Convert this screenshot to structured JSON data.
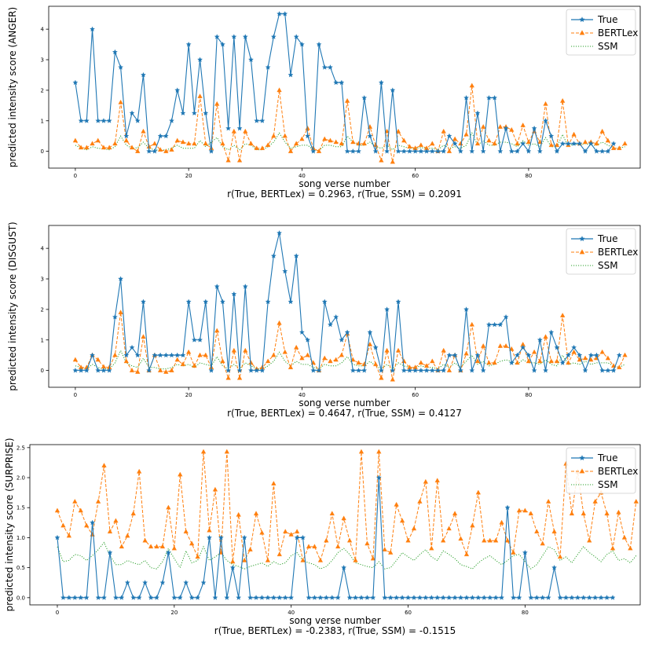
{
  "colors": {
    "True": "#1f77b4",
    "BERTLex": "#ff7f0e",
    "SSM": "#2ca02c"
  },
  "chart_data": [
    {
      "type": "line",
      "ylabel": "predicted intensity score (ANGER)",
      "xlabel": "song verse number",
      "caption": "r(True, BERTLex) = 0.2963, r(True, SSM) = 0.2091",
      "xlim": [
        -4.7,
        99.7
      ],
      "ylim": [
        -0.55,
        4.75
      ],
      "xticks": [
        0,
        20,
        40,
        60,
        80
      ],
      "yticks": [
        0,
        1,
        2,
        3,
        4
      ],
      "legend_position": "top-right",
      "grid": false,
      "series": [
        {
          "name": "True",
          "marker": "star",
          "style": "solid",
          "values": [
            2.25,
            1,
            1,
            4,
            1,
            1,
            1,
            3.25,
            2.75,
            0.5,
            1.25,
            1,
            2.5,
            0,
            0,
            0.5,
            0.5,
            1,
            2,
            1.25,
            3.5,
            1.25,
            3,
            1.25,
            0,
            3.75,
            3.5,
            0.75,
            3.75,
            0.75,
            3.75,
            3,
            1,
            1,
            2.75,
            3.75,
            4.5,
            4.5,
            2.5,
            3.75,
            3.5,
            0.5,
            0,
            3.5,
            2.75,
            2.75,
            2.25,
            2.25,
            0,
            0,
            0,
            1.75,
            0.5,
            0,
            2.25,
            0,
            2,
            0,
            0,
            0,
            0,
            0,
            0,
            0,
            0,
            0,
            0.5,
            0.25,
            0,
            1.75,
            0,
            1.25,
            0,
            1.75,
            1.75,
            0,
            0.75,
            0,
            0,
            0.25,
            0,
            0.75,
            0,
            1,
            0.5,
            0,
            0.25,
            0.25,
            0.25,
            0.25,
            0,
            0.25,
            0,
            0,
            0,
            0.25
          ]
        },
        {
          "name": "BERTLex",
          "marker": "triangle",
          "style": "dashed",
          "values": [
            0.35,
            0.12,
            0.12,
            0.25,
            0.35,
            0.12,
            0.12,
            0.25,
            1.6,
            0.35,
            0.12,
            0,
            0.65,
            0.15,
            0.25,
            0.05,
            0,
            0.05,
            0.35,
            0.3,
            0.25,
            0.25,
            1.8,
            0.25,
            0.1,
            1.55,
            0.25,
            -0.3,
            0.65,
            -0.3,
            0.65,
            0.25,
            0.1,
            0.1,
            0.2,
            0.5,
            2,
            0.5,
            0,
            0.25,
            0.4,
            0.75,
            0.1,
            0,
            0.4,
            0.35,
            0.3,
            0.25,
            1.65,
            0.3,
            0.25,
            0.25,
            0.8,
            0.2,
            -0.3,
            0.65,
            -0.35,
            0.65,
            0.35,
            0.15,
            0.1,
            0.2,
            0.1,
            0.25,
            0,
            0.65,
            0,
            0.4,
            0.25,
            0.55,
            2.15,
            0.25,
            0.8,
            0.35,
            0.25,
            0.8,
            0.8,
            0.7,
            0.25,
            0.85,
            0.3,
            0.65,
            0.3,
            1.55,
            0.2,
            0.2,
            1.65,
            0.2,
            0.55,
            0.25,
            0.3,
            0.3,
            0.25,
            0.65,
            0.35,
            0.1,
            0.1,
            0.25
          ]
        },
        {
          "name": "SSM",
          "marker": "none",
          "style": "dotted",
          "values": [
            0.2,
            0.1,
            0.05,
            0.15,
            0.1,
            0.08,
            0.05,
            0.15,
            0.5,
            0.2,
            0.1,
            0.12,
            0.3,
            0.1,
            0.05,
            0.03,
            0.05,
            0.1,
            0.2,
            0.1,
            0.1,
            0.1,
            0.35,
            0.15,
            0.3,
            0.45,
            0.15,
            0.05,
            0.2,
            0.05,
            0.25,
            0.2,
            0.05,
            0.05,
            0.15,
            0.3,
            0.6,
            0.3,
            0.1,
            0.15,
            0.2,
            0.2,
            0.05,
            0.02,
            0.2,
            0.2,
            0.15,
            0.15,
            0.5,
            0.3,
            0.2,
            0.2,
            0.3,
            0.15,
            0.1,
            0.2,
            0.05,
            0.2,
            0.15,
            0.1,
            0.1,
            0.12,
            0.1,
            0.1,
            0.05,
            0.2,
            0.1,
            0.15,
            0.1,
            0.2,
            0.6,
            0.2,
            0.35,
            0.2,
            0.2,
            0.3,
            0.3,
            0.25,
            0.15,
            0.35,
            0.2,
            0.25,
            0.15,
            0.45,
            0.15,
            0.15,
            0.55,
            0.15,
            0.25,
            0.2,
            0.25,
            0.2,
            0.2,
            0.3,
            0.2,
            0.1,
            0.1,
            0.15
          ]
        }
      ]
    },
    {
      "type": "line",
      "ylabel": "predicted intensity score (DISGUST)",
      "xlabel": "song verse number",
      "caption": "r(True, BERTLex) = 0.4647, r(True, SSM) = 0.4127",
      "xlim": [
        -4.7,
        99.7
      ],
      "ylim": [
        -0.55,
        4.75
      ],
      "xticks": [
        0,
        20,
        40,
        60,
        80
      ],
      "yticks": [
        0,
        1,
        2,
        3,
        4
      ],
      "legend_position": "top-right",
      "grid": false,
      "series": [
        {
          "name": "True",
          "marker": "star",
          "style": "solid",
          "values": [
            0,
            0,
            0,
            0.5,
            0,
            0,
            0,
            1.75,
            3,
            0.5,
            0.75,
            0.5,
            2.25,
            0,
            0.5,
            0.5,
            0.5,
            0.5,
            0.5,
            0.5,
            2.25,
            1,
            1,
            2.25,
            0,
            2.75,
            2.25,
            0,
            2.5,
            0,
            2.75,
            0,
            0,
            0,
            2.25,
            3.75,
            4.5,
            3.25,
            2.25,
            3.75,
            1.25,
            1,
            0,
            0,
            2.25,
            1.5,
            1.75,
            1,
            1.25,
            0,
            0,
            0,
            1.25,
            0.75,
            0,
            2,
            0,
            2.25,
            0,
            0,
            0,
            0,
            0,
            0,
            0,
            0,
            0.5,
            0.5,
            0,
            2,
            0,
            0.5,
            0,
            1.5,
            1.5,
            1.5,
            1.75,
            0.25,
            0.5,
            0.75,
            0.5,
            0,
            1,
            0,
            1.25,
            0.75,
            0.25,
            0.5,
            0.75,
            0.5,
            0,
            0.5,
            0.5,
            0,
            0,
            0,
            0.5
          ]
        },
        {
          "name": "BERTLex",
          "marker": "triangle",
          "style": "dashed",
          "values": [
            0.35,
            0.1,
            0.1,
            0.5,
            0.35,
            0.12,
            0.1,
            0.5,
            1.9,
            0.3,
            0,
            -0.05,
            1.1,
            0,
            0.5,
            0,
            -0.05,
            0,
            0.35,
            0.2,
            0.6,
            0.15,
            0.5,
            0.5,
            0.1,
            1.3,
            0.3,
            -0.25,
            0.65,
            -0.25,
            0.65,
            0.25,
            0.05,
            0.1,
            0.3,
            0.5,
            1.55,
            0.6,
            0.1,
            0.75,
            0.4,
            0.5,
            0.25,
            0,
            0.4,
            0.3,
            0.35,
            0.5,
            1.2,
            0.35,
            0.25,
            0.2,
            0.85,
            0.2,
            -0.25,
            0.65,
            -0.3,
            0.65,
            0.3,
            0.1,
            0.1,
            0.25,
            0.15,
            0.3,
            0,
            0.65,
            0,
            0.5,
            0,
            0.55,
            1.5,
            0.3,
            0.8,
            0.25,
            0.25,
            0.8,
            0.8,
            0.7,
            0.25,
            0.85,
            0.3,
            0.6,
            0.3,
            1.1,
            0.3,
            0.3,
            1.8,
            0.25,
            0.6,
            0.35,
            0.4,
            0.35,
            0.4,
            0.6,
            0.4,
            0.15,
            0.1,
            0.5
          ]
        },
        {
          "name": "SSM",
          "marker": "none",
          "style": "dotted",
          "values": [
            0.15,
            0.1,
            0.05,
            0.2,
            0.1,
            0.05,
            0.05,
            0.25,
            0.65,
            0.25,
            0.15,
            0.1,
            0.4,
            0.1,
            0.1,
            0.05,
            0.05,
            0.1,
            0.2,
            0.15,
            0.2,
            0.1,
            0.25,
            0.2,
            0.15,
            0.45,
            0.15,
            0.05,
            0.2,
            0.05,
            0.25,
            0.15,
            0.05,
            0.05,
            0.15,
            0.3,
            0.6,
            0.3,
            0.15,
            0.3,
            0.2,
            0.2,
            0.1,
            0.05,
            0.2,
            0.15,
            0.15,
            0.25,
            0.45,
            0.2,
            0.15,
            0.15,
            0.3,
            0.15,
            0.05,
            0.2,
            0.05,
            0.25,
            0.15,
            0.1,
            0.1,
            0.15,
            0.1,
            0.1,
            0.05,
            0.2,
            0.1,
            0.25,
            0.1,
            0.3,
            0.5,
            0.2,
            0.3,
            0.15,
            0.2,
            0.3,
            0.35,
            0.3,
            0.2,
            0.35,
            0.25,
            0.25,
            0.2,
            0.35,
            0.2,
            0.15,
            0.5,
            0.2,
            0.25,
            0.2,
            0.3,
            0.2,
            0.25,
            0.25,
            0.25,
            0.15,
            0.1,
            0.2
          ]
        }
      ]
    },
    {
      "type": "line",
      "ylabel": "predicted intensity score (SURPRISE)",
      "xlabel": "song verse number",
      "caption": "r(True, BERTLex) = -0.2383, r(True, SSM) = -0.1515",
      "xlim": [
        -4.7,
        99.7
      ],
      "ylim": [
        -0.12,
        2.55
      ],
      "xticks": [
        0,
        20,
        40,
        60,
        80
      ],
      "yticks": [
        0.0,
        0.5,
        1.0,
        1.5,
        2.0,
        2.5
      ],
      "legend_position": "top-right",
      "grid": false,
      "series": [
        {
          "name": "True",
          "marker": "star",
          "style": "solid",
          "values": [
            1,
            0,
            0,
            0,
            0,
            0,
            1.25,
            0,
            0,
            0.75,
            0,
            0,
            0.25,
            0,
            0,
            0.25,
            0,
            0,
            0.25,
            0.75,
            0,
            0,
            0.25,
            0,
            0,
            0.25,
            1,
            0,
            1,
            0,
            0.5,
            0,
            1,
            0,
            0,
            0,
            0,
            0,
            0,
            0,
            0,
            1,
            1,
            0,
            0,
            0,
            0,
            0,
            0,
            0.5,
            0,
            0,
            0,
            0,
            0,
            2,
            0,
            0,
            0,
            0,
            0,
            0,
            0,
            0,
            0,
            0,
            0,
            0,
            0,
            0,
            0,
            0,
            0,
            0,
            0,
            0,
            0,
            1.5,
            0,
            0,
            0.75,
            0,
            0,
            0,
            0,
            0.5,
            0,
            0,
            0,
            0,
            0,
            0,
            0,
            0,
            0,
            0
          ]
        },
        {
          "name": "BERTLex",
          "marker": "triangle",
          "style": "dashed",
          "values": [
            1.45,
            1.2,
            1.03,
            1.6,
            1.45,
            1.2,
            1.05,
            1.6,
            2.2,
            1.1,
            1.28,
            0.85,
            1.03,
            1.4,
            2.1,
            0.95,
            0.85,
            0.85,
            0.85,
            1.5,
            0.82,
            2.05,
            1.1,
            0.9,
            0.68,
            2.43,
            1.12,
            1.8,
            0.75,
            2.43,
            0.6,
            1.38,
            0.62,
            0.8,
            1.4,
            1.08,
            0.62,
            1.9,
            0.72,
            1.1,
            1.05,
            1.1,
            0.62,
            0.85,
            0.85,
            0.62,
            0.95,
            1.4,
            0.85,
            1.32,
            0.95,
            0.62,
            2.43,
            0.9,
            0.65,
            2.43,
            0.8,
            0.75,
            1.55,
            1.28,
            0.95,
            1.15,
            1.6,
            1.93,
            0.82,
            1.95,
            0.95,
            1.15,
            1.4,
            0.98,
            0.72,
            1.2,
            1.75,
            0.95,
            0.95,
            0.95,
            1.25,
            0.95,
            0.75,
            1.45,
            1.45,
            1.4,
            1.1,
            0.9,
            1.6,
            1.1,
            0.68,
            2.23,
            1.4,
            2.1,
            1.4,
            0.95,
            1.6,
            1.75,
            1.4,
            0.82,
            1.42,
            1.0,
            0.82,
            1.6
          ]
        },
        {
          "name": "SSM",
          "marker": "none",
          "style": "dotted",
          "values": [
            0.85,
            0.6,
            0.62,
            0.72,
            0.7,
            0.62,
            0.7,
            0.8,
            0.92,
            0.7,
            0.55,
            0.55,
            0.62,
            0.58,
            0.55,
            0.62,
            0.5,
            0.48,
            0.6,
            0.82,
            0.65,
            0.5,
            0.78,
            0.58,
            0.62,
            0.85,
            0.62,
            0.68,
            0.75,
            0.62,
            0.55,
            0.52,
            0.48,
            0.52,
            0.55,
            0.58,
            0.52,
            0.6,
            0.55,
            0.58,
            0.7,
            0.75,
            0.62,
            0.58,
            0.55,
            0.48,
            0.52,
            0.62,
            0.75,
            0.82,
            0.72,
            0.58,
            0.55,
            0.52,
            0.5,
            0.6,
            0.48,
            0.5,
            0.62,
            0.75,
            0.68,
            0.62,
            0.72,
            0.8,
            0.68,
            0.62,
            0.78,
            0.72,
            0.65,
            0.55,
            0.52,
            0.48,
            0.58,
            0.65,
            0.7,
            0.62,
            0.55,
            0.62,
            0.7,
            0.72,
            0.6,
            0.48,
            0.55,
            0.7,
            0.85,
            0.8,
            0.62,
            0.68,
            0.58,
            0.72,
            0.85,
            0.75,
            0.68,
            0.6,
            0.72,
            0.78,
            0.62,
            0.65,
            0.58,
            0.7
          ]
        }
      ]
    }
  ]
}
